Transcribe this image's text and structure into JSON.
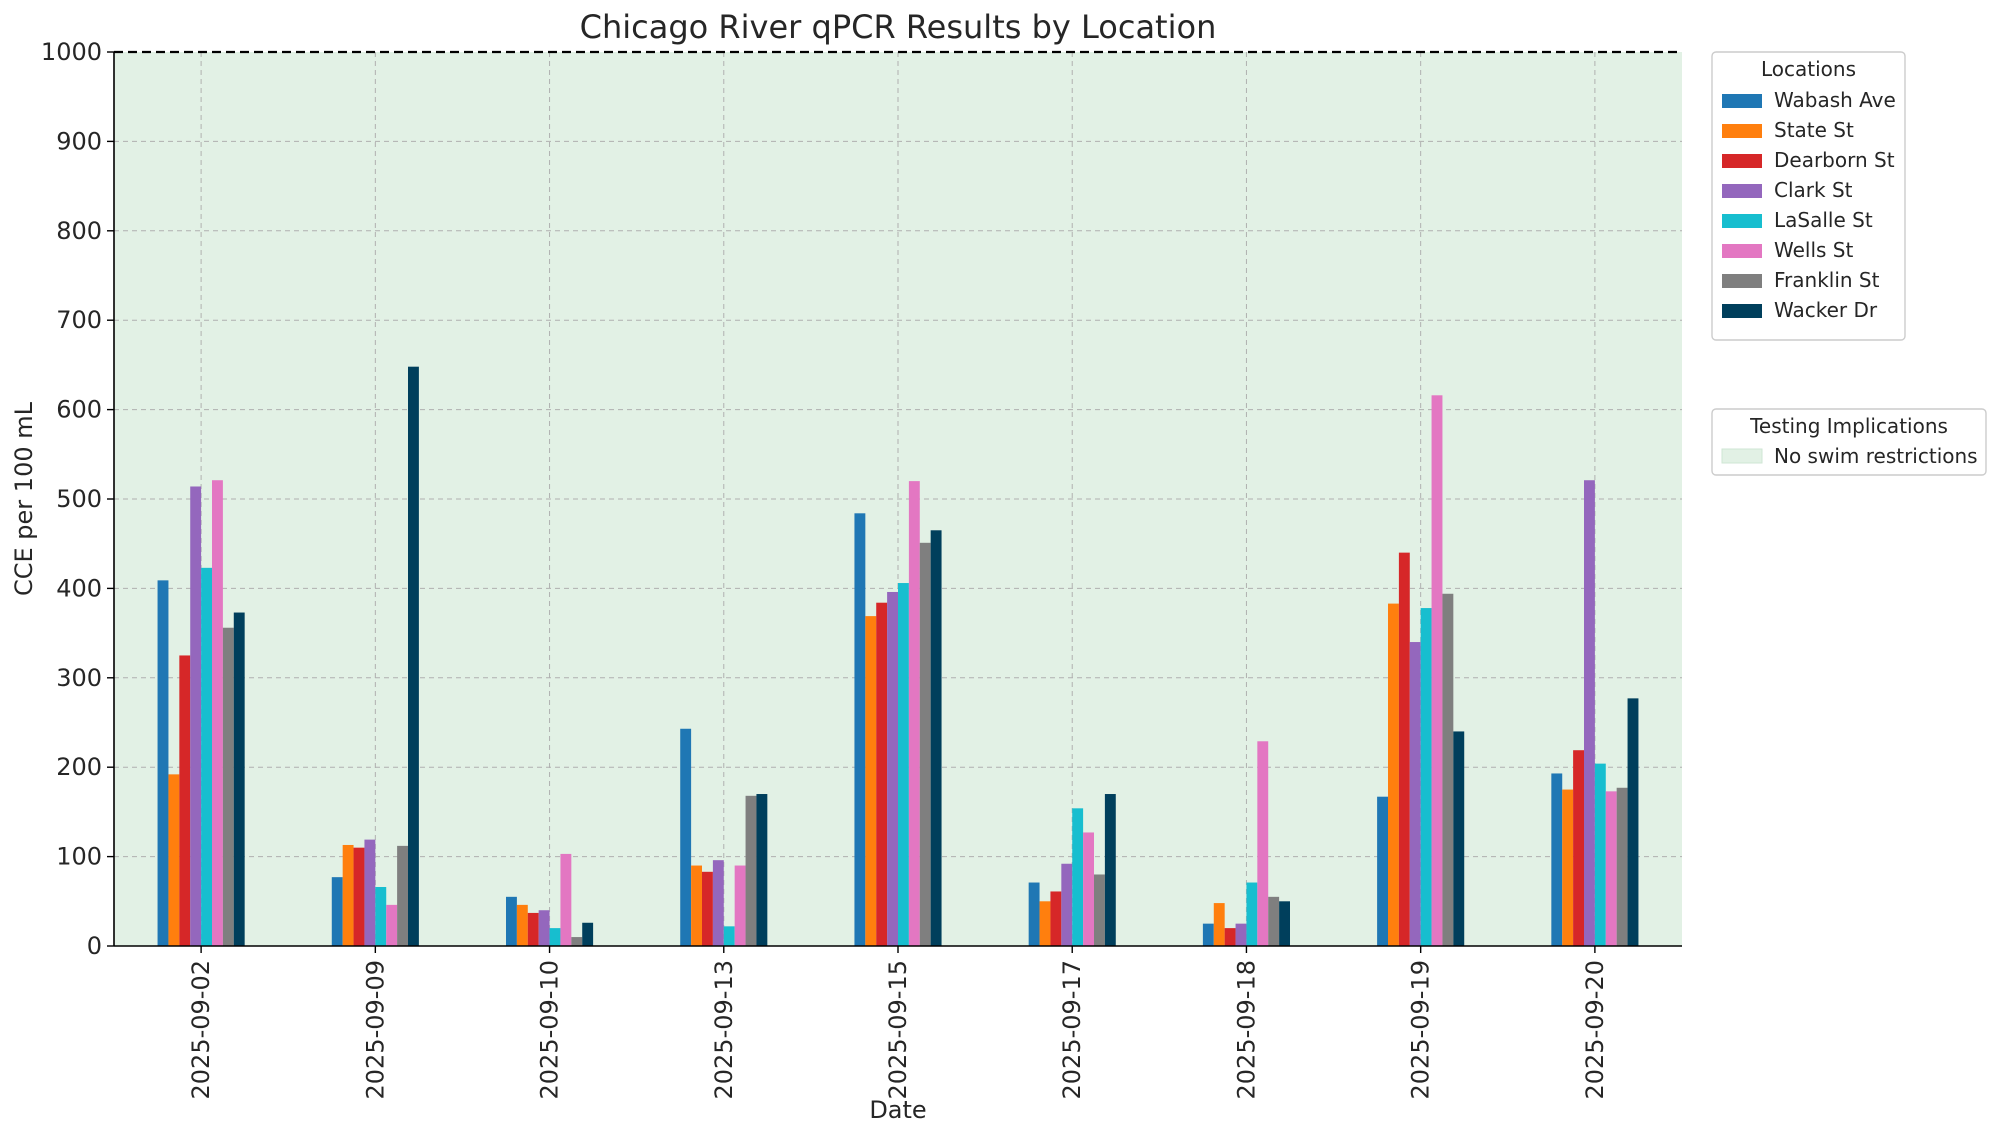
{
  "chart_data": {
    "type": "bar",
    "title": "Chicago River qPCR Results by Location",
    "xlabel": "Date",
    "ylabel": "CCE per 100 mL",
    "ylim": [
      0,
      1000
    ],
    "yticks": [
      0,
      100,
      200,
      300,
      400,
      500,
      600,
      700,
      800,
      900,
      1000
    ],
    "categories": [
      "2025-09-02",
      "2025-09-09",
      "2025-09-10",
      "2025-09-13",
      "2025-09-15",
      "2025-09-17",
      "2025-09-18",
      "2025-09-19",
      "2025-09-20"
    ],
    "series": [
      {
        "name": "Wabash Ave",
        "color": "#1f77b4",
        "values": [
          409,
          77,
          55,
          243,
          484,
          71,
          25,
          167,
          193
        ]
      },
      {
        "name": "State St",
        "color": "#ff7f0e",
        "values": [
          192,
          113,
          46,
          90,
          369,
          50,
          48,
          383,
          175
        ]
      },
      {
        "name": "Dearborn St",
        "color": "#d62728",
        "values": [
          325,
          110,
          37,
          83,
          384,
          61,
          20,
          440,
          219
        ]
      },
      {
        "name": "Clark St",
        "color": "#9467bd",
        "values": [
          514,
          119,
          40,
          96,
          396,
          92,
          25,
          340,
          521
        ]
      },
      {
        "name": "LaSalle St",
        "color": "#17becf",
        "values": [
          423,
          66,
          20,
          22,
          406,
          154,
          71,
          378,
          204
        ]
      },
      {
        "name": "Wells St",
        "color": "#e377c2",
        "values": [
          521,
          46,
          103,
          90,
          520,
          127,
          229,
          616,
          173
        ]
      },
      {
        "name": "Franklin St",
        "color": "#7f7f7f",
        "values": [
          356,
          112,
          10,
          168,
          451,
          80,
          55,
          394,
          177
        ]
      },
      {
        "name": "Wacker Dr",
        "color": "#003f5c",
        "values": [
          373,
          648,
          26,
          170,
          465,
          170,
          50,
          240,
          277
        ]
      }
    ],
    "threshold_line": {
      "value": 1000,
      "style": "dashed",
      "color": "#000000"
    },
    "background_band": {
      "label": "No swim restrictions",
      "color": "#e2f1e5",
      "from": 0,
      "to": 1000
    },
    "legends": [
      {
        "title": "Locations",
        "placement": "outside upper right"
      },
      {
        "title": "Testing Implications",
        "placement": "outside right",
        "entries": [
          "No swim restrictions"
        ]
      }
    ],
    "grid": true
  }
}
